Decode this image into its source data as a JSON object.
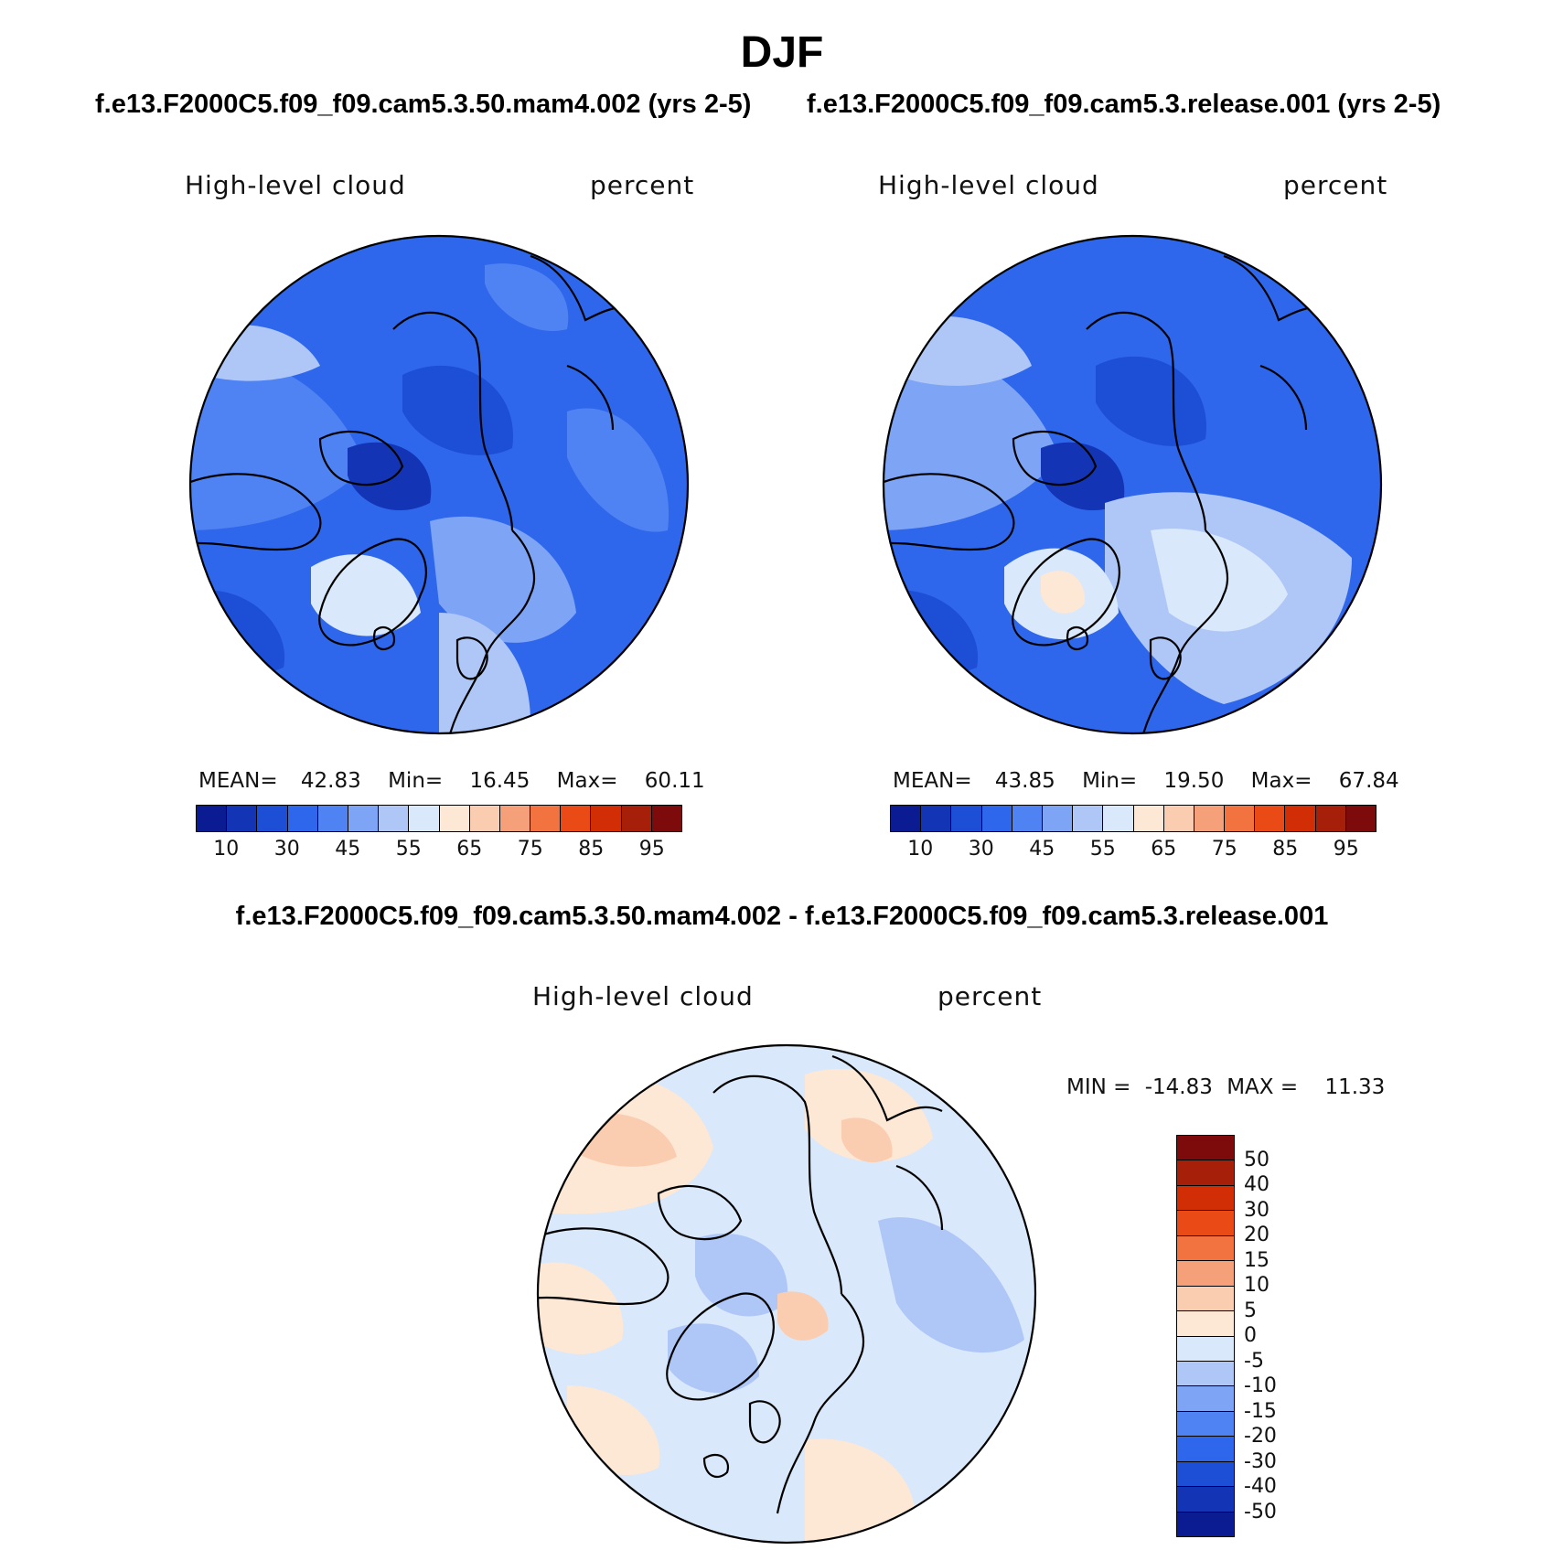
{
  "page": {
    "season": "DJF",
    "run_title_left": "f.e13.F2000C5.f09_f09.cam5.3.50.mam4.002 (yrs 2-5)",
    "run_title_right": "f.e13.F2000C5.f09_f09.cam5.3.release.001 (yrs 2-5)",
    "diff_title": "f.e13.F2000C5.f09_f09.cam5.3.50.mam4.002 - f.e13.F2000C5.f09_f09.cam5.3.release.001"
  },
  "colors": {
    "abs_scale": [
      "#0b1b91",
      "#1234b5",
      "#1c4fd6",
      "#2f67ec",
      "#4f83f3",
      "#7ea4f5",
      "#aec7f7",
      "#d9e8fb",
      "#fde8d6",
      "#fbcdb0",
      "#f6a07a",
      "#f2733f",
      "#ea4a16",
      "#d22e06",
      "#a61f08",
      "#7d0b0b"
    ],
    "diff_scale_top_to_bottom": [
      "#7d0b0b",
      "#a61f08",
      "#d22e06",
      "#ea4a16",
      "#f2733f",
      "#f6a07a",
      "#fbcdb0",
      "#fde8d6",
      "#d9e8fb",
      "#aec7f7",
      "#7ea4f5",
      "#4f83f3",
      "#2f67ec",
      "#1c4fd6",
      "#1234b5",
      "#0b1b91"
    ],
    "land_outline": "#000000"
  },
  "chart_data": [
    {
      "type": "polar-contour-map",
      "projection": "north polar stereographic",
      "title_left": "High-level cloud",
      "title_right": "percent",
      "stats": {
        "mean_label": "MEAN=",
        "mean": "42.83",
        "min_label": "Min=",
        "min": "16.45",
        "max_label": "Max=",
        "max": "60.11"
      },
      "colorbar_ticks": [
        "10",
        "30",
        "45",
        "55",
        "65",
        "75",
        "85",
        "95"
      ],
      "field_description": "mostly 30-55 percent; lowest values over Canadian Archipelago and Beaufort Sea; higher (55-65) over Greenland and Atlantic"
    },
    {
      "type": "polar-contour-map",
      "projection": "north polar stereographic",
      "title_left": "High-level cloud",
      "title_right": "percent",
      "stats": {
        "mean_label": "MEAN=",
        "mean": "43.85",
        "min_label": "Min=",
        "min": "19.50",
        "max_label": "Max=",
        "max": "67.84"
      },
      "colorbar_ticks": [
        "10",
        "30",
        "45",
        "55",
        "65",
        "75",
        "85",
        "95"
      ],
      "field_description": "similar to first panel; Greenland reaches 65-75 percent; broader 55-65 over Siberia and North Atlantic"
    },
    {
      "type": "polar-contour-map",
      "projection": "north polar stereographic",
      "title_left": "High-level cloud",
      "title_right": "percent",
      "stats": {
        "min_label": "MIN =",
        "min": "-14.83",
        "max_label": "MAX =",
        "max": "11.33"
      },
      "colorbar_ticks": [
        "50",
        "40",
        "30",
        "20",
        "15",
        "10",
        "5",
        "0",
        "-5",
        "-10",
        "-15",
        "-20",
        "-30",
        "-40",
        "-50"
      ],
      "field_description": "differences mostly between -10 and +10; positive (0 to 10) over Pacific/Siberia margins, negative (-5 to -10) over Canadian Archipelago and North Atlantic"
    }
  ]
}
